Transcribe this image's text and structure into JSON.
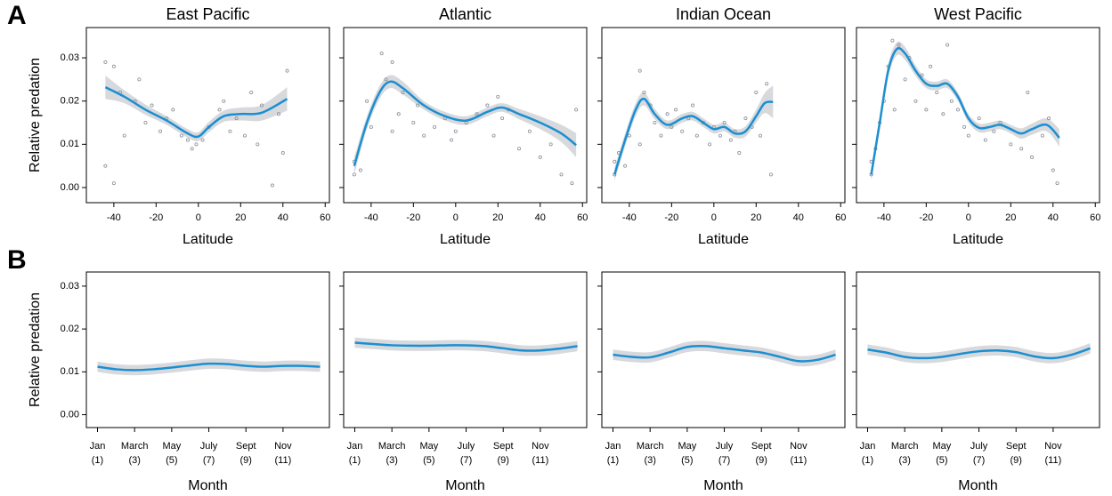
{
  "chart_data": [
    {
      "type": "scatter",
      "panel_label": "A",
      "title": "East Pacific",
      "x_label": "Latitude",
      "y_label": "Relative predation",
      "xlim": [
        -53,
        62
      ],
      "ylim": [
        -0.0035,
        0.037
      ],
      "xticks": [
        -40,
        -20,
        0,
        20,
        40,
        60
      ],
      "yticks": [
        {
          "value": 0,
          "label": "0.00"
        },
        {
          "value": 0.01,
          "label": "0.01"
        },
        {
          "value": 0.02,
          "label": "0.02"
        },
        {
          "value": 0.03,
          "label": "0.03"
        }
      ],
      "points": {
        "color": "#8a8f99",
        "x": [
          -44,
          -44,
          -40,
          -40,
          -37,
          -35,
          -30,
          -28,
          -25,
          -22,
          -18,
          -15,
          -12,
          -8,
          -5,
          -3,
          -1,
          2,
          5,
          10,
          12,
          15,
          18,
          22,
          25,
          28,
          30,
          35,
          38,
          40,
          42
        ],
        "y": [
          0.029,
          0.005,
          0.028,
          0.001,
          0.022,
          0.012,
          0.02,
          0.025,
          0.015,
          0.019,
          0.013,
          0.016,
          0.018,
          0.012,
          0.011,
          0.009,
          0.01,
          0.011,
          0.014,
          0.018,
          0.02,
          0.013,
          0.016,
          0.012,
          0.022,
          0.01,
          0.019,
          0.0005,
          0.017,
          0.008,
          0.027
        ]
      },
      "smooth": {
        "color": "#1a8fd2",
        "band_color": "#d8d9dc",
        "x": [
          -44,
          -35,
          -25,
          -15,
          -5,
          0,
          5,
          12,
          20,
          30,
          42
        ],
        "values": [
          0.0232,
          0.021,
          0.018,
          0.0155,
          0.0125,
          0.0118,
          0.014,
          0.0165,
          0.017,
          0.0173,
          0.0205
        ],
        "lower": [
          0.0205,
          0.0195,
          0.0168,
          0.0145,
          0.0115,
          0.0108,
          0.0128,
          0.0152,
          0.0155,
          0.0155,
          0.0178
        ],
        "upper": [
          0.0259,
          0.0225,
          0.0192,
          0.0165,
          0.0135,
          0.0128,
          0.0152,
          0.0178,
          0.0185,
          0.0191,
          0.0232
        ]
      }
    },
    {
      "type": "scatter",
      "title": "Atlantic",
      "x_label": "Latitude",
      "xlim": [
        -53,
        62
      ],
      "ylim": [
        -0.0035,
        0.037
      ],
      "xticks": [
        -40,
        -20,
        0,
        20,
        40,
        60
      ],
      "yticks": [
        0,
        0.01,
        0.02,
        0.03
      ],
      "points": {
        "color": "#8a8f99",
        "x": [
          -48,
          -48,
          -45,
          -42,
          -40,
          -35,
          -33,
          -30,
          -30,
          -27,
          -25,
          -20,
          -18,
          -15,
          -10,
          -5,
          -2,
          0,
          5,
          10,
          15,
          18,
          20,
          22,
          25,
          30,
          35,
          40,
          45,
          50,
          55,
          57
        ],
        "y": [
          0.003,
          0.006,
          0.004,
          0.02,
          0.014,
          0.031,
          0.025,
          0.029,
          0.013,
          0.017,
          0.022,
          0.015,
          0.019,
          0.012,
          0.014,
          0.016,
          0.011,
          0.013,
          0.015,
          0.017,
          0.019,
          0.012,
          0.021,
          0.016,
          0.018,
          0.009,
          0.013,
          0.007,
          0.01,
          0.003,
          0.001,
          0.018
        ]
      },
      "smooth": {
        "color": "#1a8fd2",
        "band_color": "#d8d9dc",
        "x": [
          -48,
          -42,
          -36,
          -31,
          -25,
          -15,
          -5,
          5,
          15,
          22,
          30,
          40,
          50,
          57
        ],
        "values": [
          0.005,
          0.015,
          0.022,
          0.0245,
          0.023,
          0.019,
          0.0165,
          0.0155,
          0.0175,
          0.0185,
          0.017,
          0.015,
          0.0125,
          0.0098
        ],
        "lower": [
          0.003,
          0.0135,
          0.0205,
          0.023,
          0.0215,
          0.018,
          0.0155,
          0.0145,
          0.0165,
          0.0175,
          0.0158,
          0.0135,
          0.0105,
          0.007
        ],
        "upper": [
          0.007,
          0.0165,
          0.0235,
          0.026,
          0.0245,
          0.02,
          0.0175,
          0.0165,
          0.0185,
          0.0195,
          0.0182,
          0.0165,
          0.0145,
          0.0126
        ]
      }
    },
    {
      "type": "scatter",
      "title": "Indian Ocean",
      "x_label": "Latitude",
      "xlim": [
        -53,
        62
      ],
      "ylim": [
        -0.0035,
        0.037
      ],
      "xticks": [
        -40,
        -20,
        0,
        20,
        40,
        60
      ],
      "yticks": [
        0,
        0.01,
        0.02,
        0.03
      ],
      "points": {
        "color": "#8a8f99",
        "x": [
          -47,
          -47,
          -45,
          -42,
          -40,
          -35,
          -35,
          -33,
          -30,
          -28,
          -25,
          -22,
          -20,
          -18,
          -15,
          -12,
          -10,
          -8,
          -5,
          -2,
          0,
          3,
          5,
          8,
          10,
          12,
          15,
          18,
          20,
          22,
          25,
          27
        ],
        "y": [
          0.003,
          0.006,
          0.008,
          0.005,
          0.012,
          0.027,
          0.01,
          0.022,
          0.019,
          0.015,
          0.012,
          0.017,
          0.014,
          0.018,
          0.013,
          0.016,
          0.019,
          0.012,
          0.015,
          0.01,
          0.014,
          0.012,
          0.015,
          0.011,
          0.013,
          0.008,
          0.016,
          0.014,
          0.022,
          0.012,
          0.024,
          0.003
        ]
      },
      "smooth": {
        "color": "#1a8fd2",
        "band_color": "#d8d9dc",
        "x": [
          -47,
          -42,
          -37,
          -33,
          -28,
          -22,
          -15,
          -10,
          -5,
          0,
          5,
          10,
          15,
          20,
          24,
          28
        ],
        "values": [
          0.003,
          0.011,
          0.018,
          0.0205,
          0.017,
          0.0145,
          0.016,
          0.0165,
          0.015,
          0.0135,
          0.014,
          0.0125,
          0.013,
          0.0165,
          0.0195,
          0.0198
        ],
        "lower": [
          0.0015,
          0.0095,
          0.0165,
          0.019,
          0.0158,
          0.0135,
          0.015,
          0.0155,
          0.014,
          0.0125,
          0.013,
          0.0115,
          0.0118,
          0.015,
          0.0172,
          0.016
        ],
        "upper": [
          0.0045,
          0.0125,
          0.0195,
          0.022,
          0.0182,
          0.0155,
          0.017,
          0.0175,
          0.016,
          0.0145,
          0.015,
          0.0135,
          0.0142,
          0.018,
          0.0218,
          0.0236
        ]
      }
    },
    {
      "type": "scatter",
      "title": "West Pacific",
      "x_label": "Latitude",
      "xlim": [
        -53,
        62
      ],
      "ylim": [
        -0.0035,
        0.037
      ],
      "xticks": [
        -40,
        -20,
        0,
        20,
        40,
        60
      ],
      "yticks": [
        0,
        0.01,
        0.02,
        0.03
      ],
      "points": {
        "color": "#8a8f99",
        "x": [
          -46,
          -46,
          -44,
          -42,
          -40,
          -38,
          -36,
          -35,
          -33,
          -30,
          -28,
          -25,
          -22,
          -20,
          -18,
          -15,
          -12,
          -10,
          -8,
          -5,
          -2,
          0,
          5,
          8,
          12,
          15,
          20,
          25,
          28,
          30,
          35,
          38,
          40,
          42
        ],
        "y": [
          0.003,
          0.006,
          0.009,
          0.015,
          0.02,
          0.028,
          0.034,
          0.018,
          0.033,
          0.025,
          0.03,
          0.02,
          0.026,
          0.018,
          0.028,
          0.022,
          0.017,
          0.033,
          0.02,
          0.018,
          0.014,
          0.012,
          0.016,
          0.011,
          0.013,
          0.015,
          0.01,
          0.009,
          0.022,
          0.007,
          0.012,
          0.016,
          0.004,
          0.001
        ]
      },
      "smooth": {
        "color": "#1a8fd2",
        "band_color": "#d8d9dc",
        "x": [
          -46,
          -42,
          -38,
          -34,
          -30,
          -25,
          -20,
          -15,
          -10,
          -5,
          0,
          5,
          10,
          15,
          20,
          25,
          30,
          37,
          43
        ],
        "values": [
          0.003,
          0.015,
          0.027,
          0.032,
          0.031,
          0.027,
          0.024,
          0.0235,
          0.024,
          0.021,
          0.016,
          0.0138,
          0.014,
          0.0145,
          0.0135,
          0.0125,
          0.0135,
          0.0145,
          0.0115
        ],
        "lower": [
          0.0015,
          0.0135,
          0.0255,
          0.0305,
          0.0295,
          0.0258,
          0.023,
          0.0225,
          0.023,
          0.02,
          0.015,
          0.0128,
          0.013,
          0.0135,
          0.0125,
          0.0113,
          0.0122,
          0.013,
          0.0095
        ],
        "upper": [
          0.0045,
          0.0165,
          0.0285,
          0.0335,
          0.0325,
          0.0282,
          0.025,
          0.0245,
          0.025,
          0.022,
          0.017,
          0.0148,
          0.015,
          0.0155,
          0.0145,
          0.0137,
          0.0148,
          0.016,
          0.0135
        ]
      }
    },
    {
      "type": "line",
      "panel_label": "B",
      "x_label": "Month",
      "y_label": "Relative predation",
      "xlim": [
        0.4,
        13.5
      ],
      "ylim": [
        -0.003,
        0.0333
      ],
      "xticks": [
        {
          "value": 1,
          "label": "Jan",
          "sublabel": "(1)"
        },
        {
          "value": 3,
          "label": "March",
          "sublabel": "(3)"
        },
        {
          "value": 5,
          "label": "May",
          "sublabel": "(5)"
        },
        {
          "value": 7,
          "label": "July",
          "sublabel": "(7)"
        },
        {
          "value": 9,
          "label": "Sept",
          "sublabel": "(9)"
        },
        {
          "value": 11,
          "label": "Nov",
          "sublabel": "(11)"
        }
      ],
      "yticks": [
        {
          "value": 0,
          "label": "0.00"
        },
        {
          "value": 0.01,
          "label": "0.01"
        },
        {
          "value": 0.02,
          "label": "0.02"
        },
        {
          "value": 0.03,
          "label": "0.03"
        }
      ],
      "smooth": {
        "color": "#1a8fd2",
        "band_color": "#d8d9dc",
        "x": [
          1,
          2,
          3,
          4,
          5,
          6,
          7,
          8,
          9,
          10,
          11,
          12,
          13
        ],
        "values": [
          0.0112,
          0.0106,
          0.0104,
          0.0106,
          0.011,
          0.0115,
          0.0119,
          0.0118,
          0.0114,
          0.0112,
          0.0114,
          0.0114,
          0.0112
        ],
        "lower": [
          0.01,
          0.0094,
          0.0092,
          0.0094,
          0.0098,
          0.0103,
          0.0107,
          0.0106,
          0.0102,
          0.01,
          0.0102,
          0.0102,
          0.01
        ],
        "upper": [
          0.0124,
          0.0118,
          0.0116,
          0.0118,
          0.0122,
          0.0127,
          0.0131,
          0.013,
          0.0126,
          0.0124,
          0.0126,
          0.0126,
          0.0124
        ]
      }
    },
    {
      "type": "line",
      "x_label": "Month",
      "xlim": [
        0.4,
        13.5
      ],
      "ylim": [
        -0.003,
        0.0333
      ],
      "xticks": [
        {
          "value": 1,
          "label": "Jan",
          "sublabel": "(1)"
        },
        {
          "value": 3,
          "label": "March",
          "sublabel": "(3)"
        },
        {
          "value": 5,
          "label": "May",
          "sublabel": "(5)"
        },
        {
          "value": 7,
          "label": "July",
          "sublabel": "(7)"
        },
        {
          "value": 9,
          "label": "Sept",
          "sublabel": "(9)"
        },
        {
          "value": 11,
          "label": "Nov",
          "sublabel": "(11)"
        }
      ],
      "yticks": [
        0,
        0.01,
        0.02,
        0.03
      ],
      "smooth": {
        "color": "#1a8fd2",
        "band_color": "#d8d9dc",
        "x": [
          1,
          2,
          3,
          4,
          5,
          6,
          7,
          8,
          9,
          10,
          11,
          12,
          13
        ],
        "values": [
          0.0168,
          0.0165,
          0.0162,
          0.0161,
          0.0161,
          0.0162,
          0.0162,
          0.016,
          0.0155,
          0.015,
          0.015,
          0.0154,
          0.016
        ],
        "lower": [
          0.0156,
          0.0153,
          0.015,
          0.0149,
          0.0149,
          0.015,
          0.015,
          0.0148,
          0.0143,
          0.0138,
          0.0138,
          0.0142,
          0.0148
        ],
        "upper": [
          0.018,
          0.0177,
          0.0174,
          0.0173,
          0.0173,
          0.0174,
          0.0174,
          0.0172,
          0.0167,
          0.0162,
          0.0162,
          0.0166,
          0.0172
        ]
      }
    },
    {
      "type": "line",
      "x_label": "Month",
      "xlim": [
        0.4,
        13.5
      ],
      "ylim": [
        -0.003,
        0.0333
      ],
      "xticks": [
        {
          "value": 1,
          "label": "Jan",
          "sublabel": "(1)"
        },
        {
          "value": 3,
          "label": "March",
          "sublabel": "(3)"
        },
        {
          "value": 5,
          "label": "May",
          "sublabel": "(5)"
        },
        {
          "value": 7,
          "label": "July",
          "sublabel": "(7)"
        },
        {
          "value": 9,
          "label": "Sept",
          "sublabel": "(9)"
        },
        {
          "value": 11,
          "label": "Nov",
          "sublabel": "(11)"
        }
      ],
      "yticks": [
        0,
        0.01,
        0.02,
        0.03
      ],
      "smooth": {
        "color": "#1a8fd2",
        "band_color": "#d8d9dc",
        "x": [
          1,
          2,
          3,
          4,
          5,
          6,
          7,
          8,
          9,
          10,
          11,
          12,
          13
        ],
        "values": [
          0.014,
          0.0135,
          0.0134,
          0.0145,
          0.0158,
          0.016,
          0.0155,
          0.015,
          0.0145,
          0.0135,
          0.0125,
          0.0128,
          0.014
        ],
        "lower": [
          0.0128,
          0.0123,
          0.0122,
          0.0133,
          0.0146,
          0.0148,
          0.0143,
          0.0138,
          0.0133,
          0.0123,
          0.0113,
          0.0116,
          0.0128
        ],
        "upper": [
          0.0152,
          0.0147,
          0.0146,
          0.0157,
          0.017,
          0.0172,
          0.0167,
          0.0162,
          0.0157,
          0.0147,
          0.0137,
          0.014,
          0.0152
        ]
      }
    },
    {
      "type": "line",
      "x_label": "Month",
      "xlim": [
        0.4,
        13.5
      ],
      "ylim": [
        -0.003,
        0.0333
      ],
      "xticks": [
        {
          "value": 1,
          "label": "Jan",
          "sublabel": "(1)"
        },
        {
          "value": 3,
          "label": "March",
          "sublabel": "(3)"
        },
        {
          "value": 5,
          "label": "May",
          "sublabel": "(5)"
        },
        {
          "value": 7,
          "label": "July",
          "sublabel": "(7)"
        },
        {
          "value": 9,
          "label": "Sept",
          "sublabel": "(9)"
        },
        {
          "value": 11,
          "label": "Nov",
          "sublabel": "(11)"
        }
      ],
      "yticks": [
        0,
        0.01,
        0.02,
        0.03
      ],
      "smooth": {
        "color": "#1a8fd2",
        "band_color": "#d8d9dc",
        "x": [
          1,
          2,
          3,
          4,
          5,
          6,
          7,
          8,
          9,
          10,
          11,
          12,
          13
        ],
        "values": [
          0.0152,
          0.0145,
          0.0135,
          0.0132,
          0.0135,
          0.0142,
          0.0148,
          0.015,
          0.0146,
          0.0136,
          0.0132,
          0.014,
          0.0155
        ],
        "lower": [
          0.014,
          0.0133,
          0.0123,
          0.012,
          0.0123,
          0.013,
          0.0136,
          0.0138,
          0.0134,
          0.0124,
          0.012,
          0.0128,
          0.0143
        ],
        "upper": [
          0.0164,
          0.0157,
          0.0147,
          0.0144,
          0.0147,
          0.0154,
          0.016,
          0.0162,
          0.0158,
          0.0148,
          0.0144,
          0.0152,
          0.0167
        ]
      }
    }
  ]
}
